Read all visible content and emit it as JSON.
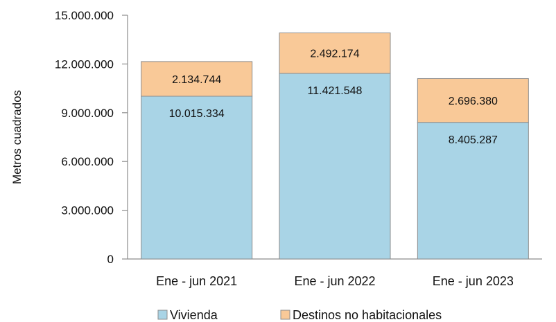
{
  "chart_data": {
    "type": "bar",
    "stacked": true,
    "categories": [
      "Ene - jun 2021",
      "Ene - jun 2022",
      "Ene - jun 2023"
    ],
    "series": [
      {
        "name": "Vivienda",
        "values": [
          10015334,
          11421548,
          8405287
        ],
        "labels": [
          "10.015.334",
          "11.421.548",
          "8.405.287"
        ],
        "color": "#a9d4e6"
      },
      {
        "name": "Destinos no habitacionales",
        "values": [
          2134744,
          2492174,
          2696380
        ],
        "labels": [
          "2.134.744",
          "2.492.174",
          "2.696.380"
        ],
        "color": "#f9c998"
      }
    ],
    "ylabel": "Metros cuadrados",
    "xlabel": "",
    "ylim": [
      0,
      15000000
    ],
    "yticks": [
      0,
      3000000,
      6000000,
      9000000,
      12000000,
      15000000
    ],
    "ytick_labels": [
      "0",
      "3.000.000",
      "6.000.000",
      "9.000.000",
      "12.000.000",
      "15.000.000"
    ],
    "grid": false,
    "legend_position": "bottom",
    "bar_edge_color": "#8c8c8c"
  }
}
